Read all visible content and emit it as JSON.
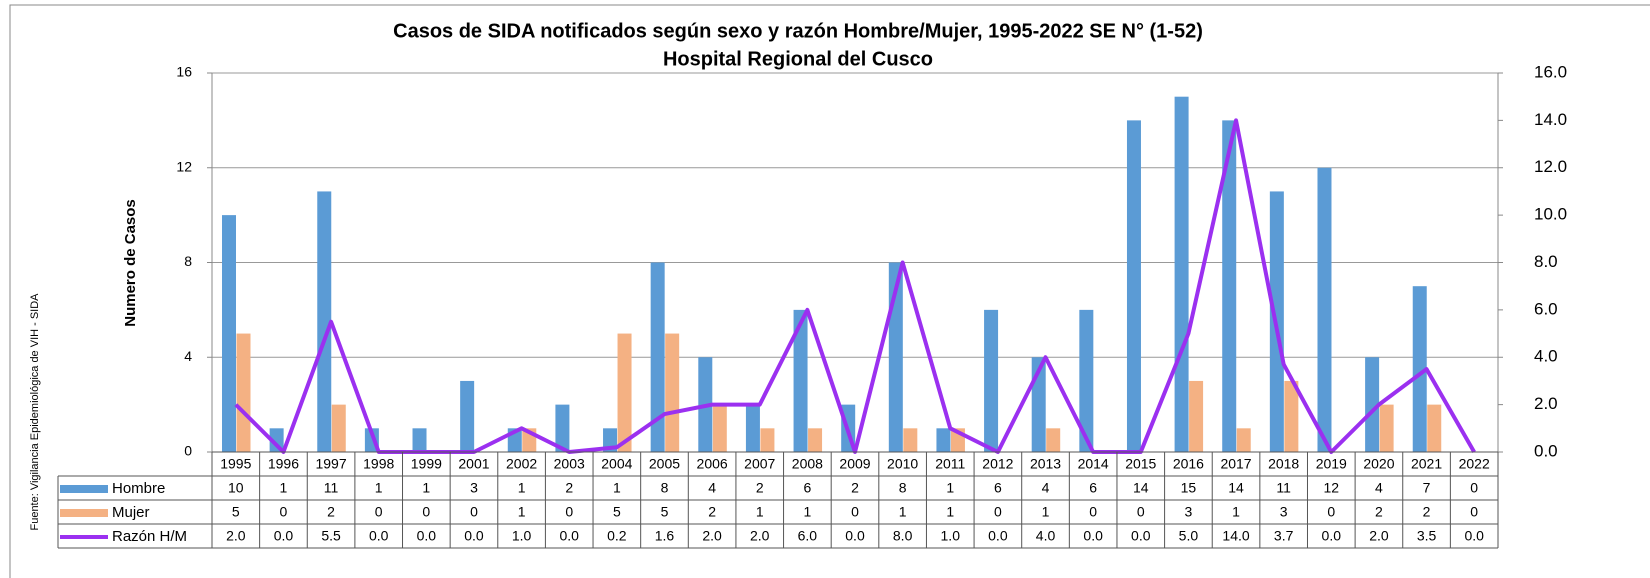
{
  "chart_data": {
    "type": "bar",
    "title": "Casos de SIDA notificados según sexo y razón Hombre/Mujer, 1995-2022 SE N° (1-52)",
    "subtitle": "Hospital Regional del Cusco",
    "ylabel": "Numero de Casos",
    "source": "Fuente: Vigilancia Epidemiológica de VIH - SIDA",
    "categories": [
      "1995",
      "1996",
      "1997",
      "1998",
      "1999",
      "2001",
      "2002",
      "2003",
      "2004",
      "2005",
      "2006",
      "2007",
      "2008",
      "2009",
      "2010",
      "2011",
      "2012",
      "2013",
      "2014",
      "2015",
      "2016",
      "2017",
      "2018",
      "2019",
      "2020",
      "2021",
      "2022"
    ],
    "series": [
      {
        "name": "Hombre",
        "color": "#5b9bd5",
        "type": "bar",
        "values": [
          10,
          1,
          11,
          1,
          1,
          3,
          1,
          2,
          1,
          8,
          4,
          2,
          6,
          2,
          8,
          1,
          6,
          4,
          6,
          14,
          15,
          14,
          11,
          12,
          4,
          7,
          0
        ]
      },
      {
        "name": "Mujer",
        "color": "#f4b183",
        "type": "bar",
        "values": [
          5,
          0,
          2,
          0,
          0,
          0,
          1,
          0,
          5,
          5,
          2,
          1,
          1,
          0,
          1,
          1,
          0,
          1,
          0,
          0,
          3,
          1,
          3,
          0,
          2,
          2,
          0
        ]
      },
      {
        "name": "Razón H/M",
        "color": "#9b30f0",
        "type": "line",
        "axis": "y2",
        "values": [
          2.0,
          0.0,
          5.5,
          0.0,
          0.0,
          0.0,
          1.0,
          0.0,
          0.2,
          1.6,
          2.0,
          2.0,
          6.0,
          0.0,
          8.0,
          1.0,
          0.0,
          4.0,
          0.0,
          0.0,
          5.0,
          14.0,
          3.7,
          0.0,
          2.0,
          3.5,
          0.0
        ],
        "value_labels": [
          "2.0",
          "0.0",
          "5.5",
          "0.0",
          "0.0",
          "0.0",
          "1.0",
          "0.0",
          "0.2",
          "1.6",
          "2.0",
          "2.0",
          "6.0",
          "0.0",
          "8.0",
          "1.0",
          "0.0",
          "4.0",
          "0.0",
          "0.0",
          "5.0",
          "14.0",
          "3.7",
          "0.0",
          "2.0",
          "3.5",
          "0.0"
        ]
      }
    ],
    "ylim": [
      0,
      16
    ],
    "yticks": [
      0,
      4,
      8,
      12,
      16
    ],
    "y2lim": [
      0,
      16
    ],
    "y2ticks": [
      {
        "value": 0,
        "label": "0.0"
      },
      {
        "value": 2,
        "label": "2.0"
      },
      {
        "value": 4,
        "label": "4.0"
      },
      {
        "value": 6,
        "label": "6.0"
      },
      {
        "value": 8,
        "label": "8.0"
      },
      {
        "value": 10,
        "label": "10.0"
      },
      {
        "value": 12,
        "label": "12.0"
      },
      {
        "value": 14,
        "label": "14.0"
      },
      {
        "value": 16,
        "label": "16.0"
      }
    ],
    "grid": true
  }
}
